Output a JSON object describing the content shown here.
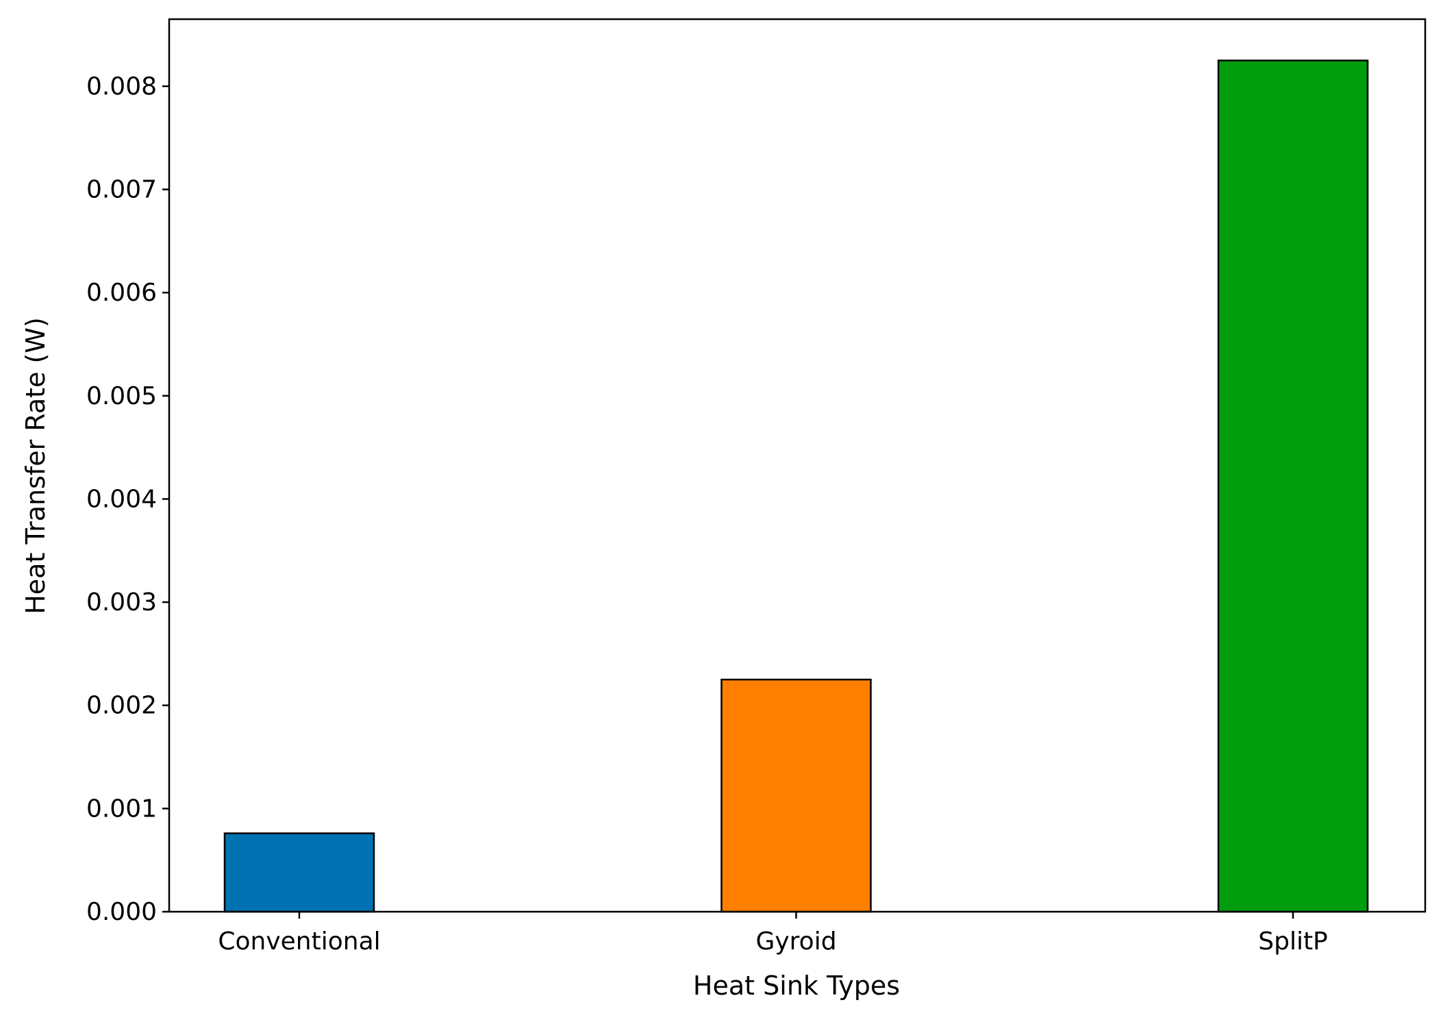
{
  "chart_data": {
    "type": "bar",
    "title": "",
    "xlabel": "Heat Sink Types",
    "ylabel": "Heat Transfer Rate (W)",
    "categories": [
      "Conventional",
      "Gyroid",
      "SplitP"
    ],
    "values": [
      0.00076,
      0.00225,
      0.00825
    ],
    "colors": [
      "#0072b2",
      "#ff7f00",
      "#009e0f"
    ],
    "ylim": [
      0,
      0.00865
    ],
    "yticks": [
      0.0,
      0.001,
      0.002,
      0.003,
      0.004,
      0.005,
      0.006,
      0.007,
      0.008
    ],
    "ytick_labels": [
      "0.000",
      "0.001",
      "0.002",
      "0.003",
      "0.004",
      "0.005",
      "0.006",
      "0.007",
      "0.008"
    ],
    "grid": false,
    "legend": "none"
  }
}
